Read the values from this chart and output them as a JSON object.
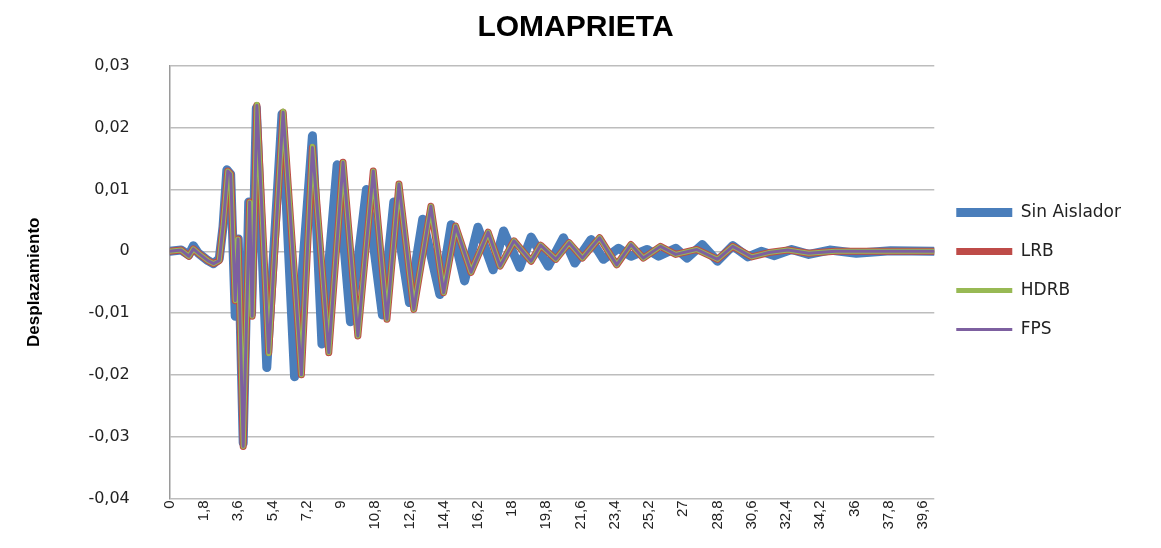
{
  "chart_data": {
    "type": "line",
    "title": "LOMAPRIETA",
    "ylabel": "Desplazamiento",
    "xlim": [
      0,
      40.2
    ],
    "xticks": [
      0,
      {
        "value": 1.8,
        "label": "1,8"
      },
      {
        "value": 3.6,
        "label": "3,6"
      },
      {
        "value": 5.4,
        "label": "5,4"
      },
      {
        "value": 7.2,
        "label": "7,2"
      },
      9,
      {
        "value": 10.8,
        "label": "10,8"
      },
      {
        "value": 12.6,
        "label": "12,6"
      },
      {
        "value": 14.4,
        "label": "14,4"
      },
      {
        "value": 16.2,
        "label": "16,2"
      },
      18,
      {
        "value": 19.8,
        "label": "19,8"
      },
      {
        "value": 21.6,
        "label": "21,6"
      },
      {
        "value": 23.4,
        "label": "23,4"
      },
      {
        "value": 25.2,
        "label": "25,2"
      },
      27,
      {
        "value": 28.8,
        "label": "28,8"
      },
      {
        "value": 30.6,
        "label": "30,6"
      },
      {
        "value": 32.4,
        "label": "32,4"
      },
      {
        "value": 34.2,
        "label": "34,2"
      },
      36,
      {
        "value": 37.8,
        "label": "37,8"
      },
      {
        "value": 39.6,
        "label": "39,6"
      }
    ],
    "ylim": [
      -0.04,
      0.03
    ],
    "yticks": [
      {
        "value": -0.04,
        "label": "-0,04"
      },
      {
        "value": -0.03,
        "label": "-0,03"
      },
      {
        "value": -0.02,
        "label": "-0,02"
      },
      {
        "value": -0.01,
        "label": "-0,01"
      },
      0,
      {
        "value": 0.01,
        "label": "0,01"
      },
      {
        "value": 0.02,
        "label": "0,02"
      },
      {
        "value": 0.03,
        "label": "0,03"
      }
    ],
    "grid": "y",
    "legend": "right",
    "marker": "none",
    "line_style": "solid",
    "series": [
      {
        "name": "Sin Aislador",
        "color": "#4a7ebb",
        "x": [
          0,
          0.6,
          1.0,
          1.24,
          1.5,
          2.0,
          2.3,
          2.6,
          2.8,
          3.0,
          3.2,
          3.44,
          3.6,
          3.86,
          4.15,
          4.3,
          4.55,
          5.1,
          5.9,
          6.56,
          7.5,
          8.0,
          8.8,
          9.5,
          10.34,
          11.18,
          11.78,
          12.6,
          13.3,
          14.2,
          14.8,
          15.5,
          16.2,
          17.0,
          17.55,
          18.4,
          19.0,
          19.9,
          20.7,
          21.3,
          22.15,
          22.8,
          23.6,
          24.25,
          25.1,
          25.7,
          26.6,
          27.2,
          28.0,
          28.8,
          29.6,
          30.4,
          31.1,
          31.8,
          32.7,
          33.6,
          34.7,
          36.1,
          37.9,
          40.15
        ],
        "values": [
          0,
          0.0002,
          -0.0006,
          0.0009,
          -0.0003,
          -0.0015,
          -0.002,
          -0.0012,
          0.004,
          0.0132,
          0.0125,
          -0.0105,
          0.002,
          -0.031,
          0.008,
          -0.01,
          0.0232,
          -0.0188,
          0.0222,
          -0.0203,
          0.0187,
          -0.015,
          0.014,
          -0.0114,
          0.01,
          -0.0103,
          0.008,
          -0.0083,
          0.0052,
          -0.007,
          0.0043,
          -0.0048,
          0.0039,
          -0.003,
          0.0033,
          -0.0026,
          0.0023,
          -0.0024,
          0.0022,
          -0.0019,
          0.0019,
          -0.0013,
          0.0005,
          -0.0008,
          0.0003,
          -0.0008,
          0.0005,
          -0.0011,
          0.0011,
          -0.0016,
          0.0009,
          -0.0009,
          0,
          -0.0007,
          0.0003,
          -0.0005,
          0.0002,
          -0.0003,
          0.0001,
          0
        ]
      },
      {
        "name": "LRB",
        "color": "#be4b48",
        "x": [
          0,
          0.6,
          1.0,
          1.24,
          1.5,
          2.0,
          2.3,
          2.6,
          2.8,
          3.05,
          3.2,
          3.44,
          3.59,
          3.86,
          4.2,
          4.33,
          4.58,
          5.2,
          5.96,
          6.92,
          7.5,
          8.36,
          9.11,
          9.89,
          10.7,
          11.42,
          12.05,
          12.83,
          13.73,
          14.4,
          15.03,
          15.84,
          16.74,
          17.37,
          18.1,
          19.0,
          19.5,
          20.3,
          21.0,
          21.7,
          22.6,
          23.5,
          24.25,
          24.9,
          25.8,
          26.6,
          27.7,
          28.8,
          29.6,
          30.6,
          31.5,
          32.5,
          33.6,
          35.0,
          40.15
        ],
        "values": [
          0,
          0.0002,
          -0.0008,
          0.0004,
          -0.0003,
          -0.0015,
          -0.002,
          -0.0015,
          0.004,
          0.013,
          0.0125,
          -0.008,
          0.002,
          -0.0316,
          0.008,
          -0.0105,
          0.0236,
          -0.0164,
          0.0225,
          -0.02,
          0.0168,
          -0.0164,
          0.0144,
          -0.0137,
          0.013,
          -0.011,
          0.0109,
          -0.0094,
          0.0073,
          -0.0067,
          0.0041,
          -0.0034,
          0.0031,
          -0.0024,
          0.0017,
          -0.0016,
          0.001,
          -0.0013,
          0.0014,
          -0.0011,
          0.0022,
          -0.0022,
          0.0011,
          -0.0011,
          0.0008,
          -0.0005,
          0.0003,
          -0.0013,
          0.0008,
          -0.0009,
          -0.0002,
          0.0002,
          -0.0003,
          0,
          0
        ]
      },
      {
        "name": "HDRB",
        "color": "#98b954",
        "x": [
          0,
          0.6,
          1.0,
          1.24,
          1.5,
          2.0,
          2.3,
          2.6,
          2.8,
          3.05,
          3.2,
          3.44,
          3.59,
          3.86,
          4.2,
          4.33,
          4.58,
          5.2,
          5.96,
          6.92,
          7.5,
          8.36,
          9.11,
          9.89,
          10.7,
          11.42,
          12.05,
          12.83,
          13.73,
          14.4,
          15.03,
          15.84,
          16.74,
          17.37,
          18.1,
          19.0,
          19.5,
          20.3,
          21.0,
          21.7,
          22.6,
          23.5,
          24.25,
          24.9,
          25.8,
          26.6,
          27.7,
          28.8,
          29.6,
          30.6,
          31.5,
          32.5,
          33.6,
          35.0,
          40.15
        ],
        "values": [
          0,
          0.0002,
          -0.0008,
          0.0004,
          -0.0003,
          -0.0015,
          -0.002,
          -0.0015,
          0.004,
          0.013,
          0.0125,
          -0.008,
          0.002,
          -0.0316,
          0.008,
          -0.0105,
          0.0238,
          -0.0166,
          0.0227,
          -0.02,
          0.017,
          -0.0164,
          0.0144,
          -0.0137,
          0.013,
          -0.011,
          0.0109,
          -0.0094,
          0.0073,
          -0.0067,
          0.0041,
          -0.0034,
          0.0031,
          -0.0024,
          0.0017,
          -0.0016,
          0.001,
          -0.0013,
          0.0014,
          -0.0011,
          0.0022,
          -0.0022,
          0.0011,
          -0.0011,
          0.0008,
          -0.0005,
          0.0003,
          -0.0013,
          0.0008,
          -0.0009,
          -0.0002,
          0.0002,
          -0.0003,
          0,
          0
        ]
      },
      {
        "name": "FPS",
        "color": "#7d60a0",
        "x": [
          0,
          0.6,
          1.0,
          1.24,
          1.5,
          2.0,
          2.3,
          2.6,
          2.8,
          3.05,
          3.2,
          3.44,
          3.59,
          3.86,
          4.2,
          4.33,
          4.58,
          5.2,
          5.96,
          6.92,
          7.5,
          8.36,
          9.11,
          9.89,
          10.7,
          11.42,
          12.05,
          12.83,
          13.73,
          14.4,
          15.03,
          15.84,
          16.74,
          17.37,
          18.1,
          19.0,
          19.5,
          20.3,
          21.0,
          21.7,
          22.6,
          23.5,
          24.25,
          24.9,
          25.8,
          26.6,
          27.7,
          28.8,
          29.6,
          30.6,
          31.5,
          32.5,
          33.6,
          35.0,
          40.15
        ],
        "values": [
          0,
          0.0002,
          -0.0008,
          0.0004,
          -0.0003,
          -0.0015,
          -0.002,
          -0.0015,
          0.004,
          0.013,
          0.0125,
          -0.008,
          0.002,
          -0.0316,
          0.008,
          -0.0105,
          0.0236,
          -0.0164,
          0.0225,
          -0.02,
          0.0168,
          -0.0164,
          0.0144,
          -0.0137,
          0.013,
          -0.011,
          0.0109,
          -0.0094,
          0.0073,
          -0.0067,
          0.0041,
          -0.0034,
          0.0031,
          -0.0024,
          0.0017,
          -0.0016,
          0.001,
          -0.0013,
          0.0014,
          -0.0011,
          0.0022,
          -0.0022,
          0.0011,
          -0.0011,
          0.0008,
          -0.0005,
          0.0003,
          -0.0013,
          0.0008,
          -0.0009,
          -0.0002,
          0.0002,
          -0.0003,
          0,
          0
        ]
      }
    ]
  }
}
